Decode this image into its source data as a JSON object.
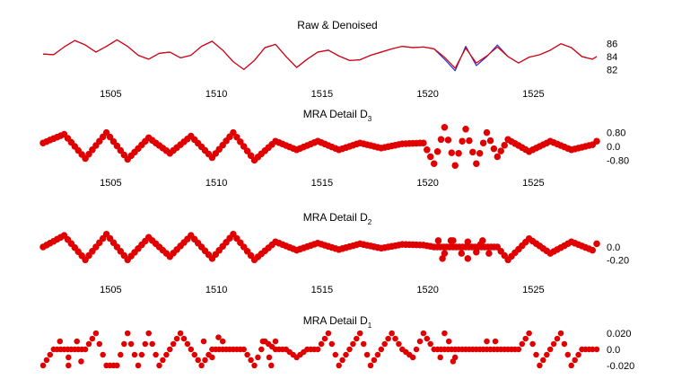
{
  "colors": {
    "raw": "#2b2bd6",
    "denoised": "#e00000",
    "detail": "#e00000"
  },
  "chart_data": [
    {
      "type": "line",
      "title": "Raw & Denoised",
      "x_ticks": [
        1505,
        1510,
        1515,
        1520,
        1525
      ],
      "y_ticks": [
        "86",
        "84",
        "82"
      ],
      "y_tick_values": [
        86,
        84,
        82
      ],
      "ylim": [
        80.5,
        87.5
      ],
      "grid": false,
      "series": [
        {
          "name": "",
          "color": "#2b2bd6",
          "x": [
            1501.8,
            1502.3,
            1502.8,
            1503.3,
            1503.8,
            1504.3,
            1504.8,
            1505.3,
            1505.8,
            1506.3,
            1506.8,
            1507.3,
            1507.8,
            1508.3,
            1508.8,
            1509.3,
            1509.8,
            1510.3,
            1510.8,
            1511.3,
            1511.8,
            1512.3,
            1512.8,
            1513.3,
            1513.8,
            1514.3,
            1514.8,
            1515.3,
            1515.8,
            1516.3,
            1516.8,
            1517.3,
            1517.8,
            1518.3,
            1518.8,
            1519.3,
            1519.8,
            1520.3,
            1520.8,
            1521.3,
            1521.8,
            1522.3,
            1522.8,
            1523.3,
            1523.8,
            1524.3,
            1524.8,
            1525.3,
            1525.8,
            1526.3,
            1526.8,
            1527.3,
            1527.8,
            1528.0
          ],
          "y": [
            84.4,
            84.3,
            85.5,
            86.5,
            85.8,
            84.7,
            85.6,
            86.6,
            85.6,
            84.2,
            83.6,
            84.5,
            84.7,
            83.8,
            84.2,
            85.6,
            86.4,
            85.0,
            83.2,
            82.0,
            83.4,
            85.4,
            85.9,
            84.0,
            82.3,
            83.6,
            84.7,
            85.0,
            84.1,
            83.4,
            83.5,
            84.2,
            84.7,
            85.2,
            85.6,
            85.4,
            85.5,
            85.2,
            83.6,
            81.8,
            85.6,
            82.6,
            84.0,
            85.8,
            84.0,
            83.0,
            83.9,
            84.3,
            85.0,
            86.0,
            85.4,
            84.0,
            83.6,
            84.0
          ]
        },
        {
          "name": "",
          "color": "#e00000",
          "x": [
            1501.8,
            1502.3,
            1502.8,
            1503.3,
            1503.8,
            1504.3,
            1504.8,
            1505.3,
            1505.8,
            1506.3,
            1506.8,
            1507.3,
            1507.8,
            1508.3,
            1508.8,
            1509.3,
            1509.8,
            1510.3,
            1510.8,
            1511.3,
            1511.8,
            1512.3,
            1512.8,
            1513.3,
            1513.8,
            1514.3,
            1514.8,
            1515.3,
            1515.8,
            1516.3,
            1516.8,
            1517.3,
            1517.8,
            1518.3,
            1518.8,
            1519.3,
            1519.8,
            1520.3,
            1520.8,
            1521.3,
            1521.8,
            1522.3,
            1522.8,
            1523.3,
            1523.8,
            1524.3,
            1524.8,
            1525.3,
            1525.8,
            1526.3,
            1526.8,
            1527.3,
            1527.8,
            1528.0
          ],
          "y": [
            84.4,
            84.3,
            85.5,
            86.5,
            85.8,
            84.7,
            85.6,
            86.6,
            85.6,
            84.2,
            83.6,
            84.5,
            84.7,
            83.8,
            84.2,
            85.6,
            86.4,
            85.0,
            83.2,
            82.0,
            83.4,
            85.4,
            85.9,
            84.0,
            82.3,
            83.6,
            84.7,
            85.0,
            84.1,
            83.4,
            83.5,
            84.2,
            84.7,
            85.2,
            85.6,
            85.4,
            85.5,
            85.2,
            83.9,
            82.2,
            85.3,
            83.0,
            84.1,
            85.5,
            84.0,
            83.0,
            83.9,
            84.3,
            85.0,
            86.0,
            85.4,
            84.0,
            83.6,
            84.0
          ]
        }
      ]
    },
    {
      "type": "scatter",
      "title": "MRA Detail D",
      "title_subscript": "3",
      "x_ticks": [
        1505,
        1510,
        1515,
        1520,
        1525
      ],
      "y_ticks": [
        "0.80",
        "0.0",
        "-0.80"
      ],
      "y_tick_values": [
        0.8,
        0.0,
        -0.8
      ],
      "ylim": [
        -1.3,
        1.3
      ],
      "grid": false,
      "series": [
        {
          "name": "",
          "color": "#e00000",
          "x": [
            1501.8,
            1502.8,
            1503.8,
            1504.8,
            1505.8,
            1506.8,
            1507.8,
            1508.8,
            1509.8,
            1510.8,
            1511.8,
            1512.8,
            1513.8,
            1514.8,
            1515.8,
            1516.8,
            1517.8,
            1518.8,
            1519.8,
            1520.3,
            1520.8,
            1521.3,
            1521.8,
            1522.3,
            1522.8,
            1523.3,
            1523.8,
            1524.8,
            1525.8,
            1526.8,
            1527.8,
            1528.0
          ],
          "y": [
            0.2,
            0.7,
            -0.7,
            0.8,
            -0.75,
            0.5,
            -0.4,
            0.6,
            -0.65,
            0.8,
            -0.8,
            0.3,
            -0.2,
            0.3,
            -0.2,
            0.2,
            -0.1,
            0.15,
            0.2,
            -1.0,
            1.1,
            -1.1,
            1.0,
            -1.0,
            0.8,
            -0.6,
            0.4,
            -0.3,
            0.3,
            -0.2,
            0.1,
            0.3
          ]
        }
      ]
    },
    {
      "type": "scatter",
      "title": "MRA Detail D",
      "title_subscript": "2",
      "x_ticks": [
        1505,
        1510,
        1515,
        1520,
        1525
      ],
      "y_ticks": [
        "0.0",
        "-0.20"
      ],
      "y_tick_values": [
        0.0,
        -0.2
      ],
      "ylim": [
        -0.35,
        0.35
      ],
      "grid": false,
      "series": [
        {
          "name": "",
          "color": "#e00000",
          "x": [
            1501.8,
            1502.8,
            1503.8,
            1504.8,
            1505.8,
            1506.8,
            1507.8,
            1508.8,
            1509.8,
            1510.8,
            1511.8,
            1512.8,
            1513.8,
            1514.8,
            1515.8,
            1516.8,
            1517.8,
            1518.8,
            1519.8,
            1520.3,
            1520.6,
            1520.9,
            1521.2,
            1521.5,
            1521.8,
            1522.1,
            1522.4,
            1522.7,
            1523.0,
            1523.3,
            1523.8,
            1524.8,
            1525.8,
            1526.8,
            1527.8,
            1528.0
          ],
          "y": [
            0.0,
            0.18,
            -0.2,
            0.2,
            -0.2,
            0.15,
            -0.15,
            0.18,
            -0.18,
            0.2,
            -0.2,
            0.08,
            -0.05,
            0.06,
            -0.04,
            0.05,
            -0.02,
            0.04,
            0.03,
            0.0,
            0.0,
            0.0,
            0.0,
            0.0,
            0.0,
            0.0,
            0.0,
            0.0,
            0.0,
            0.0,
            -0.2,
            0.13,
            -0.1,
            0.08,
            -0.05,
            0.05
          ]
        },
        {
          "name": "",
          "color": "#e00000",
          "x": [
            1520.5,
            1520.8,
            1521.1,
            1521.6,
            1521.9,
            1522.3,
            1522.6,
            1522.9,
            1520.7,
            1521.2,
            1521.9,
            1522.5
          ],
          "y": [
            0.1,
            -0.1,
            0.1,
            -0.1,
            0.08,
            -0.08,
            0.1,
            -0.1,
            -0.18,
            0.1,
            -0.18,
            0.04
          ]
        }
      ]
    },
    {
      "type": "scatter",
      "title": "MRA Detail D",
      "title_subscript": "1",
      "x_ticks": [],
      "y_ticks": [
        "0.020",
        "0.0",
        "-0.020"
      ],
      "y_tick_values": [
        0.02,
        0.0,
        -0.02
      ],
      "ylim": [
        -0.028,
        0.028
      ],
      "grid": false,
      "series": [
        {
          "name": "",
          "color": "#e00000",
          "x": [
            1501.8,
            1502.3,
            1502.8,
            1503.3,
            1503.8,
            1504.3,
            1504.8,
            1505.3,
            1505.8,
            1506.3,
            1506.8,
            1507.3,
            1507.8,
            1508.3,
            1508.8,
            1509.3,
            1509.8,
            1510.3,
            1510.8,
            1511.3,
            1511.8,
            1512.3,
            1512.8,
            1513.3,
            1513.8,
            1514.3,
            1514.8,
            1515.3,
            1515.8,
            1516.3,
            1516.8,
            1517.3,
            1517.8,
            1518.3,
            1518.8,
            1519.3,
            1519.8,
            1520.3,
            1520.8,
            1521.3,
            1521.8,
            1522.3,
            1522.8,
            1523.3,
            1523.8,
            1524.3,
            1524.8,
            1525.3,
            1525.8,
            1526.3,
            1526.8,
            1527.3,
            1527.8,
            1528.0
          ],
          "y": [
            -0.02,
            0.0,
            0.0,
            0.0,
            0.0,
            0.02,
            -0.02,
            -0.02,
            0.02,
            -0.02,
            0.02,
            -0.02,
            0.0,
            0.02,
            0.0,
            -0.02,
            0.0,
            0.0,
            0.0,
            0.0,
            -0.02,
            0.01,
            0.0,
            0.0,
            -0.01,
            0.0,
            0.0,
            0.02,
            -0.02,
            0.0,
            0.02,
            -0.02,
            0.0,
            0.02,
            0.0,
            -0.01,
            0.02,
            0.0,
            0.0,
            0.0,
            0.0,
            0.0,
            0.0,
            0.0,
            0.0,
            0.0,
            0.02,
            -0.02,
            0.0,
            0.02,
            -0.02,
            0.0,
            0.0,
            0.0
          ]
        },
        {
          "name": "",
          "color": "#e00000",
          "x": [
            1502.6,
            1503.0,
            1503.4,
            1503.0,
            1503.6,
            1509.4,
            1509.8,
            1510.3,
            1510.1,
            1512.2,
            1512.5,
            1512.8,
            1512.6,
            1520.6,
            1521.0,
            1521.3,
            1520.8,
            1521.2,
            1522.8,
            1523.2
          ],
          "y": [
            0.01,
            -0.01,
            0.01,
            -0.02,
            -0.015,
            0.01,
            -0.01,
            0.01,
            0.015,
            0.01,
            -0.01,
            0.01,
            -0.02,
            -0.01,
            0.01,
            -0.01,
            0.02,
            -0.015,
            0.01,
            0.01
          ]
        }
      ]
    }
  ]
}
